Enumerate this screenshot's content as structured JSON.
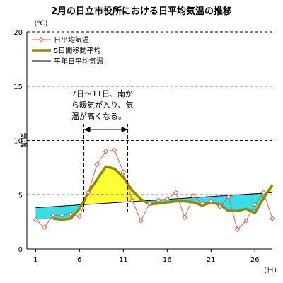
{
  "chart_data": {
    "type": "line",
    "title": "2月の日立市役所における日平均気温の推移",
    "y_unit": "(℃)",
    "x_unit": "(日)",
    "ylabel": "気温",
    "ylim": [
      0,
      20
    ],
    "yticks": [
      0,
      5,
      10,
      15,
      20
    ],
    "xlim": [
      0,
      28
    ],
    "xticks": [
      1,
      6,
      11,
      16,
      21,
      26
    ],
    "grid": "horizontal dashed",
    "legend_placement": "top-left",
    "x": [
      1,
      2,
      3,
      4,
      5,
      6,
      7,
      8,
      9,
      10,
      11,
      12,
      13,
      14,
      15,
      16,
      17,
      18,
      19,
      20,
      21,
      22,
      23,
      24,
      25,
      26,
      27,
      28
    ],
    "series": [
      {
        "name": "日平均気温",
        "values": [
          2.7,
          2.0,
          3.1,
          3.1,
          3.2,
          3.0,
          5.2,
          7.8,
          9.0,
          9.1,
          7.1,
          4.5,
          2.6,
          4.2,
          4.5,
          4.6,
          5.2,
          2.9,
          4.9,
          4.2,
          4.4,
          3.9,
          4.8,
          1.8,
          2.6,
          4.1,
          5.2,
          2.8
        ],
        "color": "#e06040"
      },
      {
        "name": "5日間移動平均",
        "x": [
          3,
          4,
          5,
          6,
          7,
          8,
          9,
          10,
          11,
          12,
          13,
          14,
          15,
          16,
          17,
          18,
          19,
          20,
          21,
          22,
          23,
          24,
          25,
          26,
          27,
          28
        ],
        "values": [
          2.8,
          2.7,
          2.8,
          3.7,
          5.2,
          6.4,
          7.6,
          7.4,
          6.6,
          5.4,
          4.6,
          4.1,
          4.2,
          4.3,
          4.4,
          4.4,
          4.3,
          4.0,
          4.3,
          4.1,
          3.5,
          3.5,
          3.7,
          3.3,
          4.7,
          5.9
        ],
        "color": "#8c8c00"
      },
      {
        "name": "平年日平均気温",
        "x": [
          1,
          28
        ],
        "values": [
          3.8,
          5.2
        ],
        "color": "#000000"
      }
    ],
    "annotation": {
      "lines": [
        "7日～11日、南か",
        "ら暖気が入り、気",
        "温が高くなる。"
      ],
      "range": [
        6.5,
        11.5
      ]
    },
    "colors": {
      "above_normal_fill": "#ffff33",
      "below_normal_fill": "#33e0e8"
    }
  }
}
